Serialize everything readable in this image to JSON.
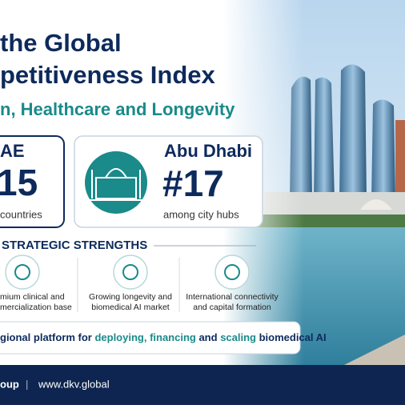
{
  "header": {
    "title_lines": [
      "the Global",
      "petitiveness Index"
    ],
    "subtitle": "n, Healthcare and Longevity"
  },
  "country_card": {
    "name": "AE",
    "rank": "15",
    "caption": "countries"
  },
  "city_card": {
    "name": "Abu Dhabi",
    "rank": "#17",
    "caption": "among city hubs"
  },
  "strengths": {
    "heading": "STRATEGIC STRENGTHS",
    "items": [
      [
        "mium clinical and",
        "mercialization base"
      ],
      [
        "Growing longevity and",
        "biomedical AI market"
      ],
      [
        "International connectivity",
        "and capital formation"
      ]
    ]
  },
  "banner": [
    "gional platform for ",
    "deploying, financing",
    " and ",
    "scaling",
    " biomedical AI"
  ],
  "footer": {
    "left": "oup",
    "separator": "|",
    "url": "www.dkv.global"
  }
}
